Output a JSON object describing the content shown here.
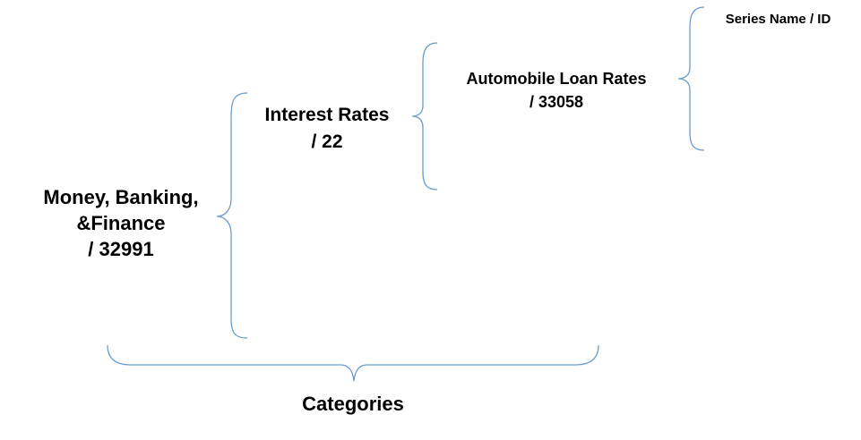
{
  "colors": {
    "brace": "#6a9ccc",
    "text": "#000000",
    "background": "#ffffff"
  },
  "nodes": {
    "level1": {
      "lines": [
        "Money, Banking,",
        "&Finance",
        "/ 32991"
      ]
    },
    "level2": {
      "lines": [
        "Interest Rates",
        "/ 22"
      ]
    },
    "level3": {
      "lines": [
        "Automobile Loan Rates",
        "/ 33058"
      ]
    },
    "level4": {
      "lines": [
        "Series Name / ID"
      ]
    }
  },
  "categories_label": "Categories"
}
